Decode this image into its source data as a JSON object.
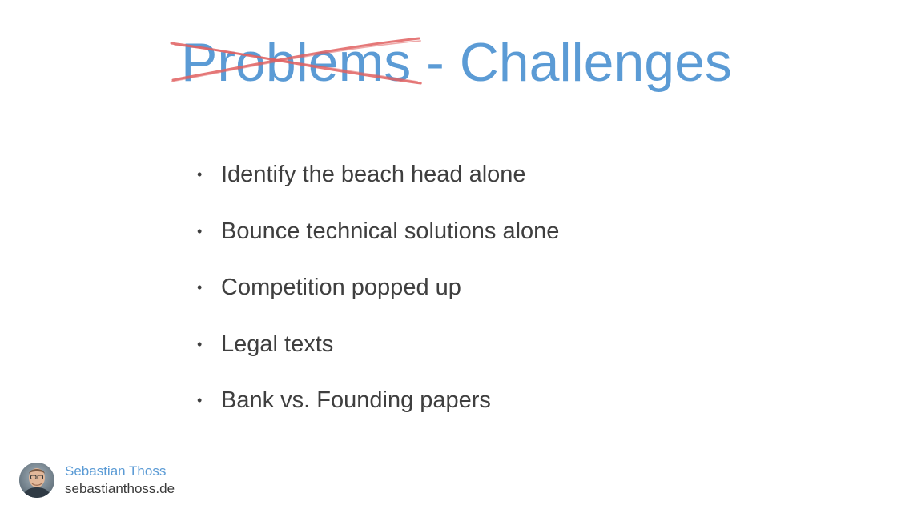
{
  "colors": {
    "accent": "#5b9bd5",
    "strike": "#e06060",
    "body_text": "#3f3f3f"
  },
  "slide": {
    "title_struck": "Problems",
    "title_rest": " - Challenges",
    "bullets": [
      "Identify the beach head alone",
      "Bounce technical solutions alone",
      "Competition popped up",
      "Legal texts",
      "Bank vs. Founding papers"
    ],
    "bullet_marker": "•"
  },
  "footer": {
    "name": "Sebastian Thoss",
    "website": "sebastianthoss.de",
    "avatar_icon": "person-photo"
  }
}
